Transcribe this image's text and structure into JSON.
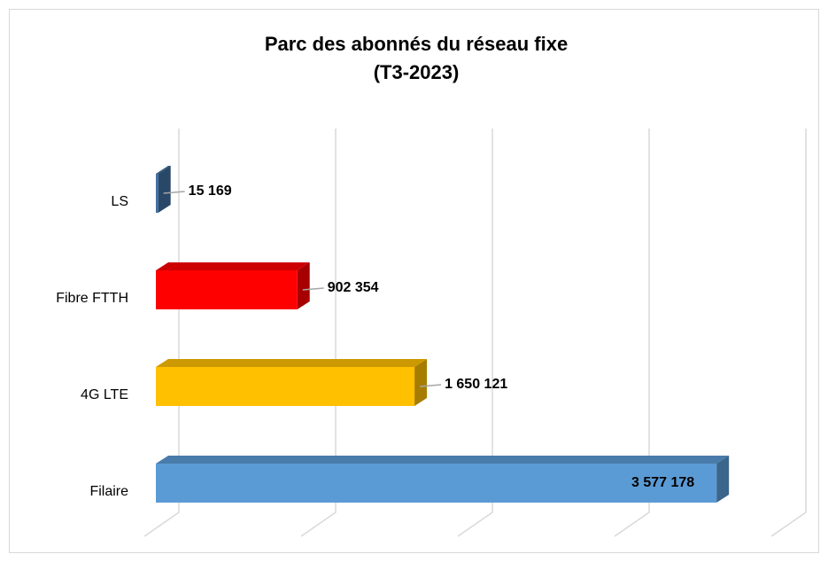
{
  "chart_data": {
    "type": "bar3d-horizontal",
    "title": [
      "Parc des abonnés du réseau fixe",
      "(T3-2023)"
    ],
    "categories": [
      "LS",
      "Fibre FTTH",
      "4G LTE",
      "Filaire"
    ],
    "values": [
      15169,
      902354,
      1650121,
      3577178
    ],
    "value_labels": [
      "15 169",
      "902 354",
      "1 650 121",
      "3 577 178"
    ],
    "colors": [
      "#3f6fa0",
      "#ff0000",
      "#ffc000",
      "#5b9bd5"
    ],
    "xlim": [
      0,
      4000000
    ],
    "xticks": [
      0,
      1000000,
      2000000,
      3000000,
      4000000
    ],
    "grid": true
  }
}
